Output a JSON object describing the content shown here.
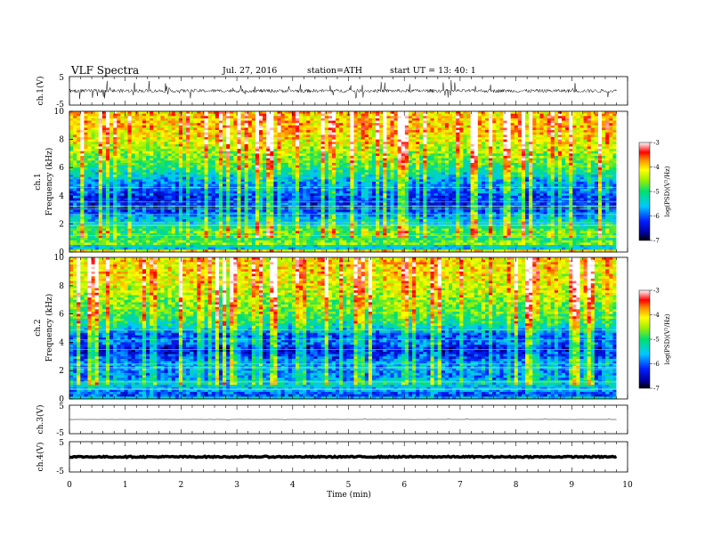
{
  "header": {
    "title": "VLF  Spectra",
    "date": "Jul.  27, 2016",
    "station": "station=ATH",
    "start": "start  UT  =    13: 40: 1"
  },
  "chart_data": {
    "type": "heatmap",
    "x_axis": {
      "label": "Time  (min)",
      "range": [
        0,
        10
      ],
      "ticks": [
        "0",
        "1",
        "2",
        "3",
        "4",
        "5",
        "6",
        "7",
        "8",
        "9",
        "10"
      ],
      "data_end": 9.8
    },
    "panels": [
      {
        "id": "ch1-waveform",
        "type": "line",
        "ylabel": "ch.1(V)",
        "ylim": [
          -5,
          5
        ],
        "ticks": [
          "5",
          "-5"
        ],
        "baseline": 0,
        "noise_amplitude": 0.6,
        "spike_amplitude": 3.5
      },
      {
        "id": "ch1-spectrogram",
        "type": "heatmap",
        "ylabel": "ch.1\nFrequency  (kHz)",
        "ylim": [
          0,
          10
        ],
        "ticks": [
          "0",
          "2",
          "4",
          "6",
          "8",
          "10"
        ],
        "colorbar": {
          "label": "log(PSD)(V²/Hz)",
          "range": [
            -7,
            -3
          ],
          "ticks": [
            "-3",
            "-4",
            "-5",
            "-6",
            "-7"
          ]
        },
        "profile_khz": [
          0,
          0.3,
          0.6,
          1.0,
          1.5,
          2.0,
          2.5,
          3.0,
          3.5,
          4.0,
          4.5,
          5.0,
          5.5,
          6.0,
          7.0,
          8.0,
          9.0,
          10.0
        ],
        "profile_logpsd": [
          -3.5,
          -6.0,
          -4.6,
          -5.2,
          -5.0,
          -5.6,
          -5.9,
          -6.4,
          -6.5,
          -6.4,
          -6.1,
          -6.0,
          -5.6,
          -5.2,
          -4.8,
          -4.4,
          -4.2,
          -4.2
        ]
      },
      {
        "id": "ch2-spectrogram",
        "type": "heatmap",
        "ylabel": "ch.2\nFrequency  (kHz)",
        "ylim": [
          0,
          10
        ],
        "ticks": [
          "0",
          "2",
          "4",
          "6",
          "8",
          "10"
        ],
        "colorbar": {
          "label": "log(PSD)(V²/Hz)",
          "range": [
            -7,
            -3
          ],
          "ticks": [
            "-3",
            "-4",
            "-5",
            "-6",
            "-7"
          ]
        },
        "profile_khz": [
          0,
          0.3,
          0.6,
          1.0,
          1.5,
          2.0,
          2.5,
          3.0,
          3.5,
          4.0,
          4.5,
          5.0,
          5.5,
          6.0,
          7.0,
          8.0,
          9.0,
          10.0
        ],
        "profile_logpsd": [
          -5.4,
          -6.3,
          -5.8,
          -5.5,
          -6.0,
          -6.0,
          -5.9,
          -6.3,
          -6.6,
          -6.1,
          -6.3,
          -5.6,
          -5.3,
          -5.0,
          -4.8,
          -4.5,
          -4.3,
          -4.3
        ]
      },
      {
        "id": "ch3-waveform",
        "type": "line",
        "ylabel": "ch.3(V)",
        "ylim": [
          -5,
          5
        ],
        "ticks": [
          "5",
          "-5"
        ],
        "baseline": 0,
        "noise_amplitude": 0.02,
        "spike_amplitude": 0.3
      },
      {
        "id": "ch4-waveform",
        "type": "line",
        "ylabel": "ch.4(V)",
        "ylim": [
          -5,
          5
        ],
        "ticks": [
          "5",
          "-5"
        ],
        "baseline": 0,
        "noise_amplitude": 0.2,
        "spike_amplitude": 0
      }
    ]
  }
}
